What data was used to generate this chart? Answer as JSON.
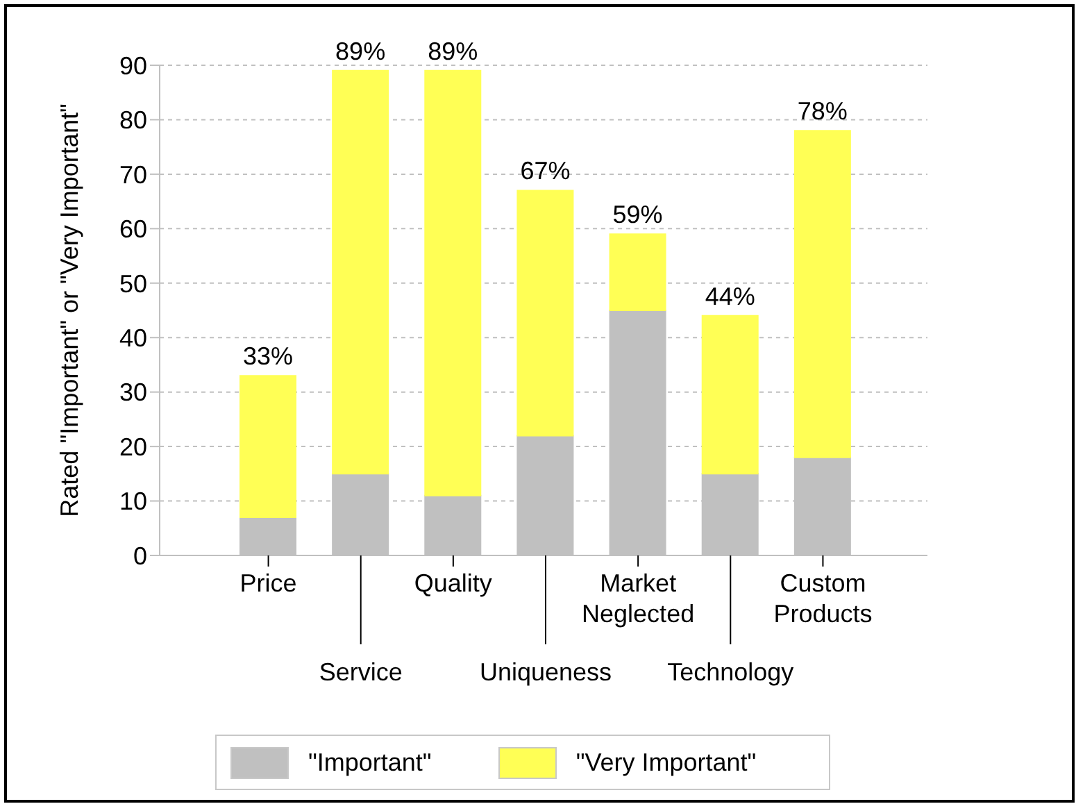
{
  "chart_data": {
    "type": "bar",
    "stacked": true,
    "ylabel": "Rated \"Important\" or \"Very Important\"",
    "categories": [
      "Price",
      "Service",
      "Quality",
      "Uniqueness",
      "Market Neglected",
      "Technology",
      "Custom Products"
    ],
    "series": [
      {
        "name": "\"Important\"",
        "color": "#c0c0c0",
        "values": [
          7,
          15,
          11,
          22,
          45,
          15,
          18
        ]
      },
      {
        "name": "\"Very Important\"",
        "color": "#ffff55",
        "values": [
          26,
          74,
          78,
          45,
          14,
          29,
          60
        ]
      }
    ],
    "totals": [
      "33%",
      "89%",
      "89%",
      "67%",
      "59%",
      "44%",
      "78%"
    ],
    "ylim": [
      0,
      90
    ],
    "yticks": [
      0,
      10,
      20,
      30,
      40,
      50,
      60,
      70,
      80,
      90
    ],
    "grid": "y",
    "legend": "bottom"
  }
}
